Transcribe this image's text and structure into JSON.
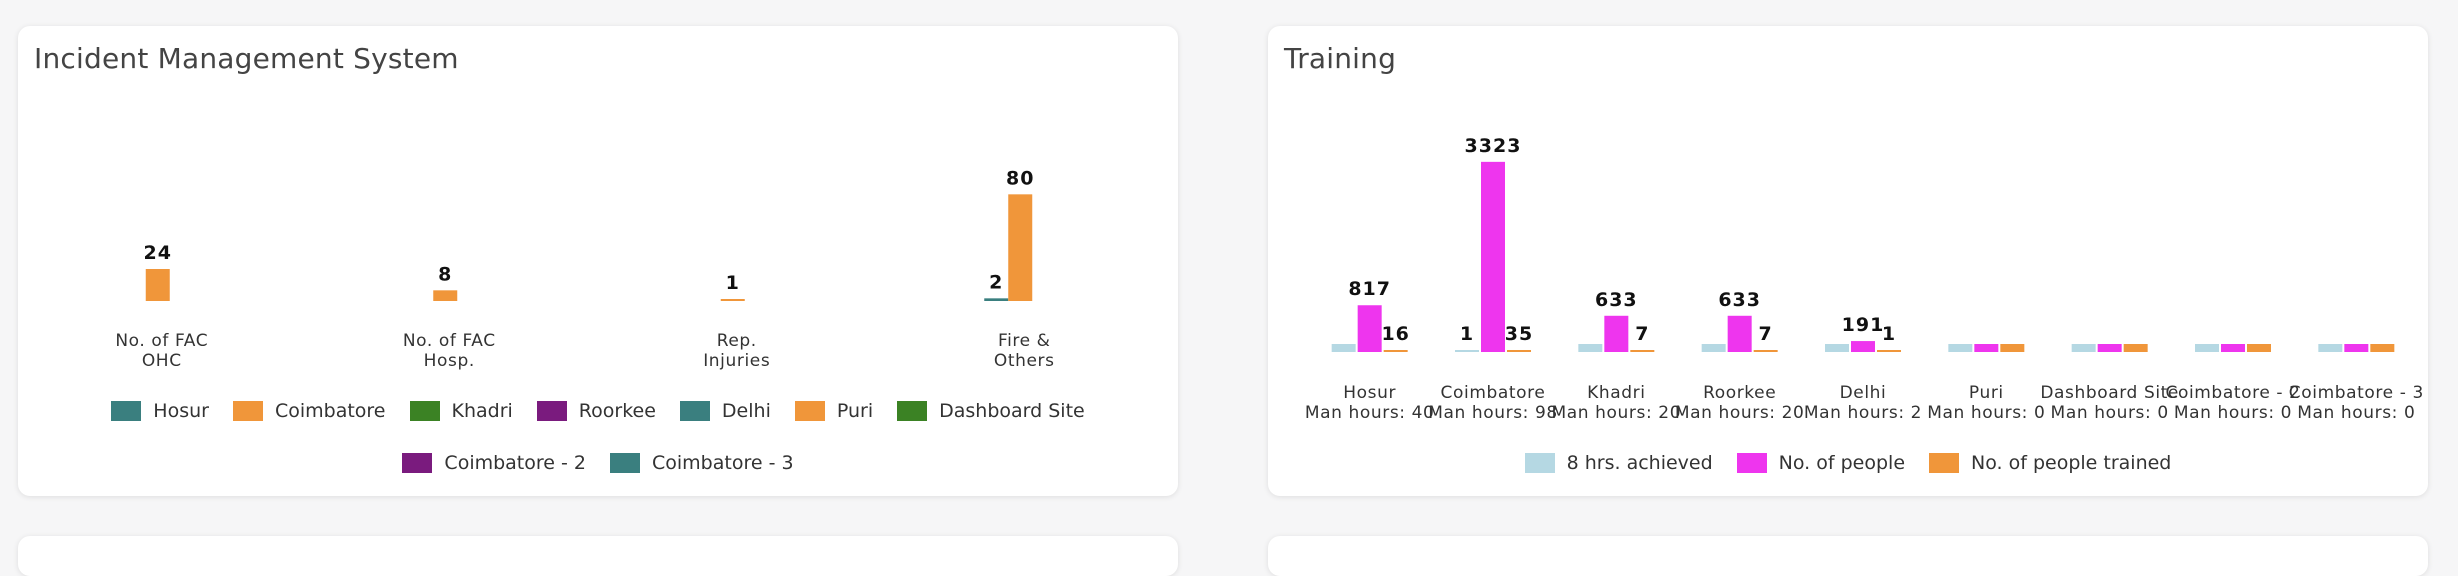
{
  "ims": {
    "title": "Incident Management System",
    "chart_data": {
      "type": "bar",
      "categories": [
        [
          "No. of FAC",
          "OHC"
        ],
        [
          "No. of FAC",
          "Hosp."
        ],
        [
          "Rep.",
          "Injuries"
        ],
        [
          "Fire &",
          "Others"
        ]
      ],
      "series": [
        {
          "name": "Hosur",
          "color": "#3a7f7f",
          "values": [
            0,
            0,
            0,
            2
          ]
        },
        {
          "name": "Coimbatore",
          "color": "#f0963a",
          "values": [
            24,
            8,
            1,
            80
          ]
        },
        {
          "name": "Khadri",
          "color": "#3b8224",
          "values": [
            0,
            0,
            0,
            0
          ]
        },
        {
          "name": "Roorkee",
          "color": "#7a1b7e",
          "values": [
            0,
            0,
            0,
            0
          ]
        },
        {
          "name": "Delhi",
          "color": "#3a7f7f",
          "values": [
            0,
            0,
            0,
            0
          ]
        },
        {
          "name": "Puri",
          "color": "#f0963a",
          "values": [
            0,
            0,
            0,
            0
          ]
        },
        {
          "name": "Dashboard Site",
          "color": "#3b8224",
          "values": [
            0,
            0,
            0,
            0
          ]
        },
        {
          "name": "Coimbatore - 2",
          "color": "#7a1b7e",
          "values": [
            0,
            0,
            0,
            0
          ]
        },
        {
          "name": "Coimbatore - 3",
          "color": "#3a7f7f",
          "values": [
            0,
            0,
            0,
            0
          ]
        }
      ],
      "data_labels": [
        {
          "category": 0,
          "series": 1,
          "text": "24"
        },
        {
          "category": 1,
          "series": 1,
          "text": "8"
        },
        {
          "category": 2,
          "series": 1,
          "text": "1"
        },
        {
          "category": 3,
          "series": 0,
          "text": "2"
        },
        {
          "category": 3,
          "series": 1,
          "text": "80"
        }
      ],
      "ylim": [
        0,
        105
      ],
      "legend": "bottom"
    }
  },
  "training": {
    "title": "Training",
    "chart_data": {
      "type": "bar",
      "categories": [
        [
          "Hosur",
          "Man hours: 40"
        ],
        [
          "Coimbatore",
          "Man hours: 98"
        ],
        [
          "Khadri",
          "Man hours: 20"
        ],
        [
          "Roorkee",
          "Man hours: 20"
        ],
        [
          "Delhi",
          "Man hours: 2"
        ],
        [
          "Puri",
          "Man hours: 0"
        ],
        [
          "Dashboard Site",
          "Man hours: 0"
        ],
        [
          "Coimbatore - 2",
          "Man hours: 0"
        ],
        [
          "Coimbatore - 3",
          "Man hours: 0"
        ]
      ],
      "series": [
        {
          "name": "8 hrs. achieved",
          "color": "#b5d8e3",
          "values": [
            0,
            1,
            0,
            0,
            0,
            0,
            0,
            0,
            0
          ]
        },
        {
          "name": "No. of people",
          "color": "#ee35ee",
          "values": [
            817,
            3323,
            633,
            633,
            191,
            0,
            0,
            0,
            0
          ]
        },
        {
          "name": "No. of people trained",
          "color": "#f0963a",
          "values": [
            16,
            35,
            7,
            7,
            1,
            0,
            0,
            0,
            0
          ]
        }
      ],
      "data_labels": [
        {
          "category": 0,
          "series": 1,
          "text": "817"
        },
        {
          "category": 0,
          "series": 2,
          "text": "16"
        },
        {
          "category": 1,
          "series": 0,
          "text": "1"
        },
        {
          "category": 1,
          "series": 1,
          "text": "3323"
        },
        {
          "category": 1,
          "series": 2,
          "text": "35"
        },
        {
          "category": 2,
          "series": 1,
          "text": "633"
        },
        {
          "category": 2,
          "series": 2,
          "text": "7"
        },
        {
          "category": 3,
          "series": 1,
          "text": "633"
        },
        {
          "category": 3,
          "series": 2,
          "text": "7"
        },
        {
          "category": 4,
          "series": 1,
          "text": "191"
        },
        {
          "category": 4,
          "series": 2,
          "text": "1"
        }
      ],
      "ylim": [
        0,
        3600
      ],
      "legend": "bottom"
    }
  }
}
